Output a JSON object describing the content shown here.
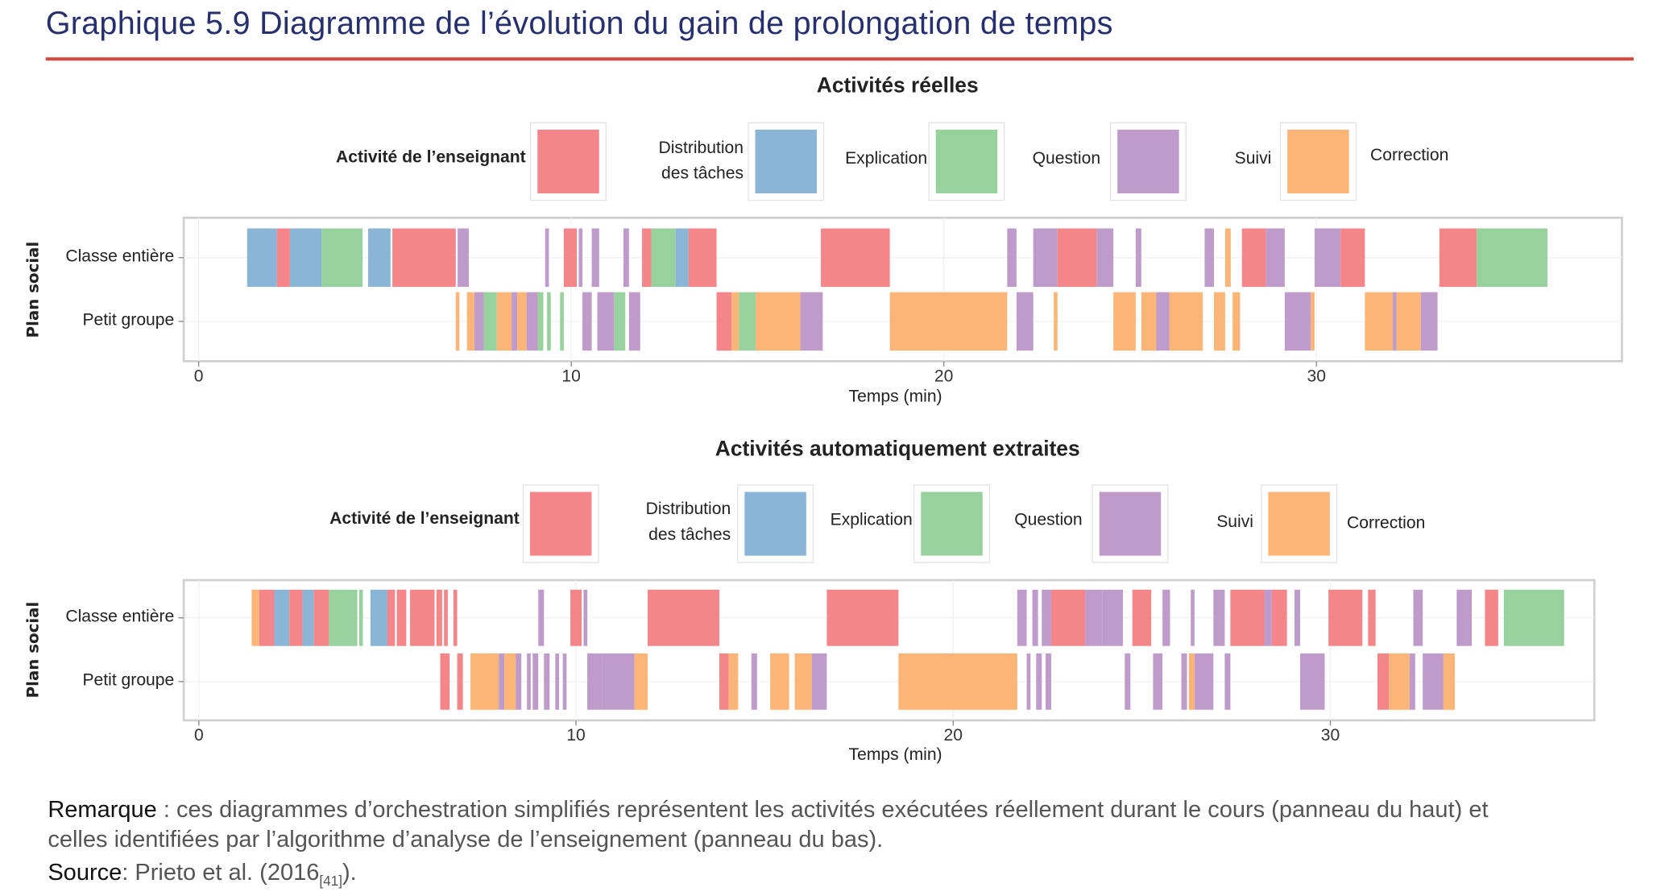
{
  "title": "Graphique 5.9  Diagramme de l’évolution du gain de prolongation de temps",
  "colors": {
    "r": "#F4868A",
    "b": "#8AB5D7",
    "g": "#97D19E",
    "p": "#BE9BCB",
    "o": "#FBB577"
  },
  "legend": [
    {
      "label": "Activité de l’enseignant",
      "color": "r"
    },
    {
      "label": "Distribution des tâches",
      "color": "b"
    },
    {
      "label": "Explication",
      "color": "g"
    },
    {
      "label": "Question",
      "color": "p"
    },
    {
      "label": "Suivi",
      "color": "o"
    },
    {
      "label": "Correction",
      "color": null
    }
  ],
  "chart_data": [
    {
      "type": "timeline",
      "title": "Activités réelles",
      "xlabel": "Temps (min)",
      "ylabel": "Plan social",
      "xlim": [
        -0.4,
        38.2
      ],
      "xticks": [
        "0",
        "10",
        "20",
        "30"
      ],
      "xtick_values": [
        0,
        10,
        20,
        30
      ],
      "rows": [
        {
          "name": "Classe entière",
          "segments": [
            [
              1.3,
              2.1,
              "b"
            ],
            [
              2.1,
              2.45,
              "r"
            ],
            [
              2.45,
              3.3,
              "b"
            ],
            [
              3.3,
              4.4,
              "g"
            ],
            [
              4.55,
              5.15,
              "b"
            ],
            [
              5.2,
              6.9,
              "r"
            ],
            [
              6.95,
              7.25,
              "p"
            ],
            [
              9.3,
              9.4,
              "p"
            ],
            [
              9.8,
              10.15,
              "r"
            ],
            [
              10.2,
              10.3,
              "p"
            ],
            [
              10.55,
              10.75,
              "p"
            ],
            [
              11.4,
              11.55,
              "p"
            ],
            [
              11.9,
              12.15,
              "r"
            ],
            [
              12.15,
              12.8,
              "g"
            ],
            [
              12.8,
              13.15,
              "b"
            ],
            [
              13.15,
              13.9,
              "r"
            ],
            [
              16.7,
              18.55,
              "r"
            ],
            [
              21.7,
              21.95,
              "p"
            ],
            [
              22.4,
              23.05,
              "p"
            ],
            [
              23.05,
              24.1,
              "r"
            ],
            [
              24.1,
              24.55,
              "p"
            ],
            [
              25.15,
              25.3,
              "p"
            ],
            [
              27.0,
              27.25,
              "p"
            ],
            [
              27.55,
              27.7,
              "o"
            ],
            [
              28.0,
              28.65,
              "r"
            ],
            [
              28.65,
              29.15,
              "p"
            ],
            [
              29.95,
              30.65,
              "p"
            ],
            [
              30.65,
              31.3,
              "r"
            ],
            [
              33.3,
              34.3,
              "r"
            ],
            [
              34.3,
              36.2,
              "g"
            ]
          ]
        },
        {
          "name": "Petit groupe",
          "segments": [
            [
              6.9,
              7.0,
              "o"
            ],
            [
              7.2,
              7.4,
              "o"
            ],
            [
              7.4,
              7.65,
              "p"
            ],
            [
              7.65,
              8.0,
              "g"
            ],
            [
              8.0,
              8.4,
              "o"
            ],
            [
              8.4,
              8.55,
              "p"
            ],
            [
              8.55,
              8.8,
              "o"
            ],
            [
              8.8,
              9.1,
              "p"
            ],
            [
              9.1,
              9.25,
              "g"
            ],
            [
              9.35,
              9.45,
              "g"
            ],
            [
              9.7,
              9.8,
              "g"
            ],
            [
              10.3,
              10.55,
              "p"
            ],
            [
              10.7,
              11.15,
              "p"
            ],
            [
              11.15,
              11.45,
              "g"
            ],
            [
              11.55,
              11.85,
              "p"
            ],
            [
              13.9,
              14.3,
              "r"
            ],
            [
              14.3,
              14.5,
              "o"
            ],
            [
              14.5,
              14.95,
              "g"
            ],
            [
              14.95,
              16.15,
              "o"
            ],
            [
              16.15,
              16.75,
              "p"
            ],
            [
              18.55,
              21.7,
              "o"
            ],
            [
              21.95,
              22.4,
              "p"
            ],
            [
              22.95,
              23.05,
              "o"
            ],
            [
              24.55,
              25.15,
              "o"
            ],
            [
              25.3,
              25.7,
              "o"
            ],
            [
              25.7,
              26.05,
              "p"
            ],
            [
              26.05,
              26.95,
              "o"
            ],
            [
              27.25,
              27.55,
              "o"
            ],
            [
              27.75,
              27.95,
              "o"
            ],
            [
              29.15,
              29.85,
              "p"
            ],
            [
              29.85,
              29.95,
              "o"
            ],
            [
              31.3,
              32.05,
              "o"
            ],
            [
              32.05,
              32.15,
              "p"
            ],
            [
              32.15,
              32.8,
              "o"
            ],
            [
              32.8,
              33.25,
              "p"
            ]
          ]
        }
      ]
    },
    {
      "type": "timeline",
      "title": "Activités automatiquement extraites",
      "xlabel": "Temps (min)",
      "ylabel": "Plan social",
      "xlim": [
        -0.4,
        37.0
      ],
      "xticks": [
        "0",
        "10",
        "20",
        "30"
      ],
      "xtick_values": [
        0,
        10,
        20,
        30
      ],
      "rows": [
        {
          "name": "Classe entière",
          "segments": [
            [
              1.4,
              1.6,
              "o"
            ],
            [
              1.6,
              2.0,
              "r"
            ],
            [
              2.0,
              2.4,
              "b"
            ],
            [
              2.4,
              2.75,
              "r"
            ],
            [
              2.75,
              3.05,
              "b"
            ],
            [
              3.05,
              3.45,
              "r"
            ],
            [
              3.45,
              4.2,
              "g"
            ],
            [
              4.25,
              4.35,
              "g"
            ],
            [
              4.55,
              5.0,
              "b"
            ],
            [
              5.0,
              5.2,
              "r"
            ],
            [
              5.25,
              5.5,
              "r"
            ],
            [
              5.6,
              6.25,
              "r"
            ],
            [
              6.3,
              6.45,
              "r"
            ],
            [
              6.5,
              6.6,
              "r"
            ],
            [
              6.75,
              6.85,
              "r"
            ],
            [
              9.0,
              9.15,
              "p"
            ],
            [
              9.85,
              10.15,
              "r"
            ],
            [
              10.2,
              10.3,
              "p"
            ],
            [
              11.9,
              13.8,
              "r"
            ],
            [
              16.65,
              18.55,
              "r"
            ],
            [
              21.7,
              21.95,
              "p"
            ],
            [
              22.1,
              22.25,
              "p"
            ],
            [
              22.35,
              22.6,
              "p"
            ],
            [
              22.6,
              23.5,
              "r"
            ],
            [
              23.5,
              23.95,
              "p"
            ],
            [
              23.95,
              24.5,
              "p"
            ],
            [
              24.75,
              25.25,
              "r"
            ],
            [
              25.55,
              25.75,
              "p"
            ],
            [
              26.3,
              26.4,
              "p"
            ],
            [
              26.9,
              27.2,
              "p"
            ],
            [
              27.35,
              28.25,
              "r"
            ],
            [
              28.25,
              28.45,
              "p"
            ],
            [
              28.45,
              28.85,
              "r"
            ],
            [
              29.05,
              29.2,
              "p"
            ],
            [
              29.95,
              30.85,
              "r"
            ],
            [
              31.0,
              31.2,
              "r"
            ],
            [
              32.2,
              32.45,
              "p"
            ],
            [
              33.35,
              33.75,
              "p"
            ],
            [
              34.1,
              34.45,
              "r"
            ],
            [
              34.6,
              36.2,
              "g"
            ]
          ]
        },
        {
          "name": "Petit groupe",
          "segments": [
            [
              6.4,
              6.65,
              "r"
            ],
            [
              6.85,
              7.0,
              "r"
            ],
            [
              7.2,
              7.35,
              "o"
            ],
            [
              7.35,
              7.95,
              "o"
            ],
            [
              7.95,
              8.1,
              "p"
            ],
            [
              8.1,
              8.4,
              "o"
            ],
            [
              8.4,
              8.55,
              "p"
            ],
            [
              8.7,
              8.8,
              "p"
            ],
            [
              8.85,
              9.0,
              "p"
            ],
            [
              9.15,
              9.3,
              "p"
            ],
            [
              9.45,
              9.55,
              "p"
            ],
            [
              9.65,
              9.75,
              "p"
            ],
            [
              10.3,
              10.7,
              "p"
            ],
            [
              10.7,
              11.55,
              "p"
            ],
            [
              11.55,
              11.9,
              "o"
            ],
            [
              13.8,
              14.05,
              "r"
            ],
            [
              14.05,
              14.3,
              "o"
            ],
            [
              14.65,
              14.8,
              "p"
            ],
            [
              15.15,
              15.65,
              "o"
            ],
            [
              15.8,
              16.25,
              "o"
            ],
            [
              16.25,
              16.65,
              "p"
            ],
            [
              18.55,
              21.7,
              "o"
            ],
            [
              21.95,
              22.05,
              "p"
            ],
            [
              22.2,
              22.35,
              "p"
            ],
            [
              22.45,
              22.6,
              "p"
            ],
            [
              24.55,
              24.7,
              "p"
            ],
            [
              25.3,
              25.55,
              "p"
            ],
            [
              26.05,
              26.2,
              "p"
            ],
            [
              26.25,
              26.4,
              "o"
            ],
            [
              26.4,
              26.9,
              "p"
            ],
            [
              27.2,
              27.35,
              "p"
            ],
            [
              29.2,
              29.85,
              "p"
            ],
            [
              31.25,
              31.55,
              "r"
            ],
            [
              31.55,
              32.1,
              "o"
            ],
            [
              32.1,
              32.25,
              "p"
            ],
            [
              32.45,
              33.0,
              "p"
            ],
            [
              33.0,
              33.3,
              "o"
            ]
          ]
        }
      ]
    }
  ],
  "note": {
    "remark_label": "Remarque",
    "remark_text": " : ces diagrammes d’orchestration simplifiés représentent les activités exécutées réellement durant le cours (panneau du haut) et",
    "remark_text2": "celles identifiées par l’algorithme d’analyse de l’enseignement (panneau du bas).",
    "source_label": "Source",
    "source_text": ": Prieto et al. (2016",
    "source_ref": "[41]",
    "source_end": ")."
  }
}
